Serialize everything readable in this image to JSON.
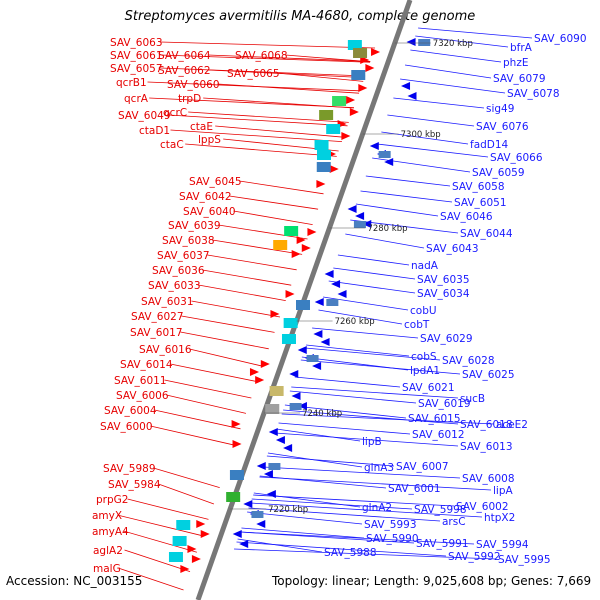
{
  "title": "Streptomyces avermitilis MA-4680, complete genome",
  "footer": {
    "accession": "Accession: NC_003155",
    "summary": "Topology: linear; Length: 9,025,608 bp; Genes: 7,669"
  },
  "colors": {
    "left_label": "#e60000",
    "right_label": "#1a1aff",
    "forward_gene": "#ff0000",
    "reverse_gene": "#0000ee",
    "axis": "#777777"
  },
  "scale_labels": [
    "7320 kbp",
    "7300 kbp",
    "7280 kbp",
    "7260 kbp",
    "7240 kbp",
    "7220 kbp"
  ],
  "left_labels": [
    "SAV_6063",
    "SAV_6064",
    "SAV_6068",
    "SAV_6061",
    "SAV_6062",
    "SAV_6057",
    "SAV_6065",
    "qcrB1",
    "SAV_6060",
    "qcrA",
    "trpD",
    "qcrC",
    "SAV_6049",
    "ctaE",
    "ctaD1",
    "lppS",
    "ctaC",
    "SAV_6045",
    "SAV_6042",
    "SAV_6040",
    "SAV_6039",
    "SAV_6038",
    "SAV_6037",
    "SAV_6036",
    "SAV_6033",
    "SAV_6031",
    "SAV_6027",
    "SAV_6017",
    "SAV_6016",
    "SAV_6014",
    "SAV_6011",
    "SAV_6006",
    "SAV_6004",
    "SAV_6000",
    "SAV_5989",
    "SAV_5984",
    "prpG2",
    "amyX",
    "amyA4",
    "aglA2",
    "malG"
  ],
  "right_labels": [
    "SAV_6090",
    "bfrA",
    "phzE",
    "SAV_6079",
    "SAV_6078",
    "sig49",
    "SAV_6076",
    "fadD14",
    "SAV_6066",
    "SAV_6059",
    "SAV_6058",
    "SAV_6051",
    "SAV_6046",
    "SAV_6044",
    "SAV_6043",
    "nadA",
    "SAV_6035",
    "SAV_6034",
    "cobU",
    "cobT",
    "SAV_6029",
    "cobS",
    "SAV_6028",
    "lpdA1",
    "SAV_6025",
    "SAV_6021",
    "sucB",
    "SAV_6019",
    "SAV_6015",
    "SAV_6018",
    "aceE2",
    "SAV_6012",
    "lipB",
    "SAV_6013",
    "glnA3",
    "SAV_6007",
    "SAV_6008",
    "SAV_6001",
    "lipA",
    "glnA2",
    "SAV_5998",
    "SAV_6002",
    "SAV_5993",
    "arsC",
    "htpX2",
    "SAV_5990",
    "SAV_5991",
    "SAV_5994",
    "SAV_5988",
    "SAV_5992",
    "SAV_5995"
  ]
}
